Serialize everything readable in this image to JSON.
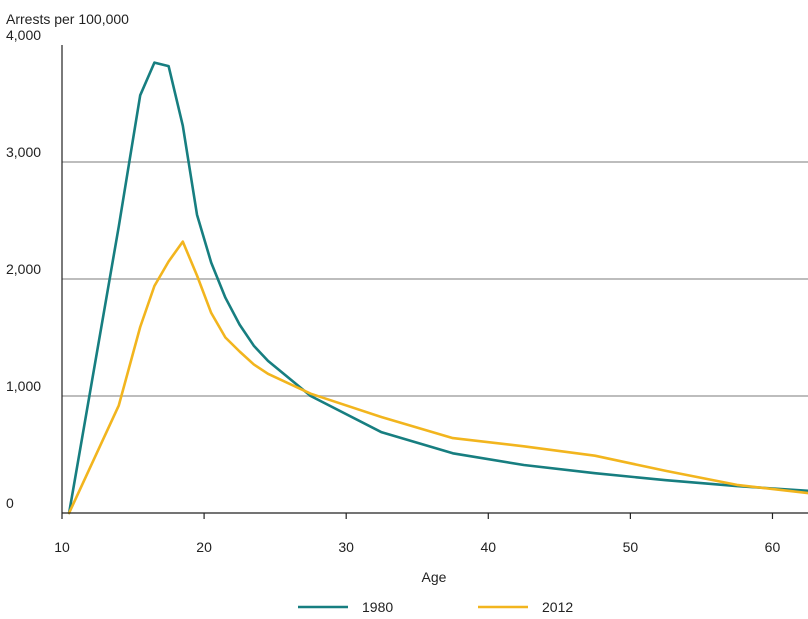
{
  "chart_data": {
    "type": "line",
    "ylabel": "Arrests per 100,000",
    "xlabel": "Age",
    "xlim": [
      10,
      62.5
    ],
    "ylim": [
      0,
      4000
    ],
    "xticks": [
      10,
      20,
      30,
      40,
      50,
      60
    ],
    "xtick_labels": [
      "10",
      "20",
      "30",
      "40",
      "50",
      "60"
    ],
    "yticks": [
      0,
      1000,
      2000,
      3000,
      4000
    ],
    "ytick_labels": [
      "0",
      "1,000",
      "2,000",
      "3,000",
      "4,000"
    ],
    "grid": "horizontal",
    "legend_position": "bottom",
    "series": [
      {
        "name": "1980",
        "color": "#177e80",
        "points": [
          [
            10.5,
            0
          ],
          [
            14,
            2450
          ],
          [
            15.5,
            3570
          ],
          [
            16.5,
            3850
          ],
          [
            17.5,
            3820
          ],
          [
            18.5,
            3310
          ],
          [
            19.5,
            2550
          ],
          [
            20.5,
            2140
          ],
          [
            21.5,
            1840
          ],
          [
            22.5,
            1610
          ],
          [
            23.5,
            1430
          ],
          [
            24.5,
            1300
          ],
          [
            27.5,
            1000
          ],
          [
            32.5,
            690
          ],
          [
            37.5,
            510
          ],
          [
            42.5,
            410
          ],
          [
            47.5,
            340
          ],
          [
            52.5,
            280
          ],
          [
            57.5,
            230
          ],
          [
            62.5,
            190
          ]
        ]
      },
      {
        "name": "2012",
        "color": "#f2b51e",
        "points": [
          [
            10.5,
            0
          ],
          [
            14,
            920
          ],
          [
            15.5,
            1590
          ],
          [
            16.5,
            1940
          ],
          [
            17.5,
            2150
          ],
          [
            18.5,
            2320
          ],
          [
            19.5,
            2030
          ],
          [
            20.5,
            1710
          ],
          [
            21.5,
            1500
          ],
          [
            22.5,
            1380
          ],
          [
            23.5,
            1270
          ],
          [
            24.5,
            1190
          ],
          [
            27.5,
            1020
          ],
          [
            32.5,
            820
          ],
          [
            37.5,
            640
          ],
          [
            42.5,
            570
          ],
          [
            47.5,
            490
          ],
          [
            52.5,
            360
          ],
          [
            57.5,
            240
          ],
          [
            62.5,
            170
          ]
        ]
      }
    ]
  }
}
